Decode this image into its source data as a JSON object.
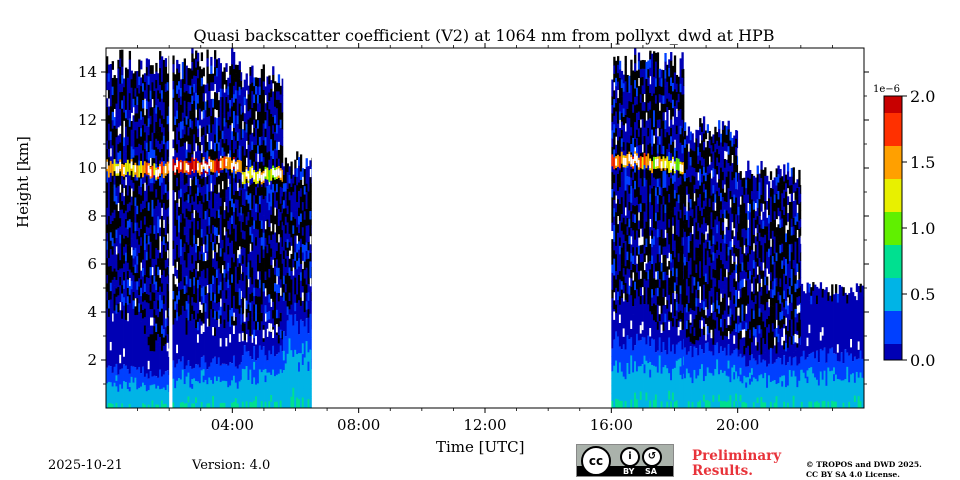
{
  "chart_data": {
    "type": "heatmap",
    "title": "Quasi backscatter coefficient (V2) at 1064 nm from pollyxt_dwd at HPB",
    "xlabel": "Time [UTC]",
    "ylabel": "Height [km]",
    "xlim": [
      0,
      24
    ],
    "ylim": [
      0,
      15
    ],
    "xticks": [
      {
        "value": 4,
        "label": "04:00"
      },
      {
        "value": 8,
        "label": "08:00"
      },
      {
        "value": 12,
        "label": "12:00"
      },
      {
        "value": 16,
        "label": "16:00"
      },
      {
        "value": 20,
        "label": "20:00"
      }
    ],
    "yticks": [
      {
        "value": 2,
        "label": "2"
      },
      {
        "value": 4,
        "label": "4"
      },
      {
        "value": 6,
        "label": "6"
      },
      {
        "value": 8,
        "label": "8"
      },
      {
        "value": 10,
        "label": "10"
      },
      {
        "value": 12,
        "label": "12"
      },
      {
        "value": 14,
        "label": "14"
      }
    ],
    "colorbar": {
      "min": 0.0,
      "max": 2.0,
      "scale_label": "1e−6",
      "ticks": [
        {
          "value": 0.0,
          "label": "0.0"
        },
        {
          "value": 0.5,
          "label": "0.5"
        },
        {
          "value": 1.0,
          "label": "1.0"
        },
        {
          "value": 1.5,
          "label": "1.5"
        },
        {
          "value": 2.0,
          "label": "2.0"
        }
      ],
      "colormap": [
        "#0000b4",
        "#0040ff",
        "#00b4e6",
        "#00e090",
        "#60f000",
        "#e8f000",
        "#ffa000",
        "#ff3000",
        "#c80000"
      ]
    },
    "segments": [
      {
        "t0": 0.0,
        "t1": 1.2,
        "noise_top": 14.8,
        "bl_top": 1.6,
        "aerosol_top": 3.9,
        "cloud_km": 10.0,
        "cloud_intensity": 1.6
      },
      {
        "t0": 1.2,
        "t1": 2.0,
        "noise_top": 14.8,
        "bl_top": 1.4,
        "aerosol_top": 2.6,
        "cloud_km": 9.9,
        "cloud_intensity": 1.9
      },
      {
        "t0": 2.1,
        "t1": 4.3,
        "noise_top": 14.8,
        "bl_top": 1.9,
        "aerosol_top": 3.2,
        "cloud_km": 10.1,
        "cloud_intensity": 2.0
      },
      {
        "t0": 4.3,
        "t1": 5.6,
        "noise_top": 14.2,
        "bl_top": 2.3,
        "aerosol_top": 3.0,
        "cloud_km": 9.7,
        "cloud_intensity": 1.5
      },
      {
        "t0": 5.6,
        "t1": 6.5,
        "noise_top": 10.5,
        "bl_top": 3.5,
        "aerosol_top": 4.1,
        "cloud_km": 0,
        "cloud_intensity": 0
      },
      {
        "t0": 16.0,
        "t1": 17.2,
        "noise_top": 14.8,
        "bl_top": 2.8,
        "aerosol_top": 4.3,
        "cloud_km": 10.3,
        "cloud_intensity": 1.8
      },
      {
        "t0": 17.2,
        "t1": 18.3,
        "noise_top": 14.8,
        "bl_top": 2.6,
        "aerosol_top": 3.4,
        "cloud_km": 10.1,
        "cloud_intensity": 1.5
      },
      {
        "t0": 18.3,
        "t1": 20.0,
        "noise_top": 12.0,
        "bl_top": 2.4,
        "aerosol_top": 2.9,
        "cloud_km": 0,
        "cloud_intensity": 0
      },
      {
        "t0": 20.0,
        "t1": 22.0,
        "noise_top": 10.0,
        "bl_top": 2.0,
        "aerosol_top": 2.4,
        "cloud_km": 0,
        "cloud_intensity": 0
      },
      {
        "t0": 22.0,
        "t1": 24.0,
        "noise_top": 5.0,
        "bl_top": 2.2,
        "aerosol_top": 4.8,
        "cloud_km": 0,
        "cloud_intensity": 0
      }
    ]
  },
  "footer": {
    "date": "2025-10-21",
    "version": "Version: 4.0",
    "preliminary_line1": "Preliminary",
    "preliminary_line2": "Results.",
    "copyright_line1": "© TROPOS and DWD 2025.",
    "copyright_line2": "CC BY SA 4.0 License."
  },
  "license_badge": {
    "cc_label": "cc",
    "by_label": "BY",
    "sa_label": "SA"
  }
}
